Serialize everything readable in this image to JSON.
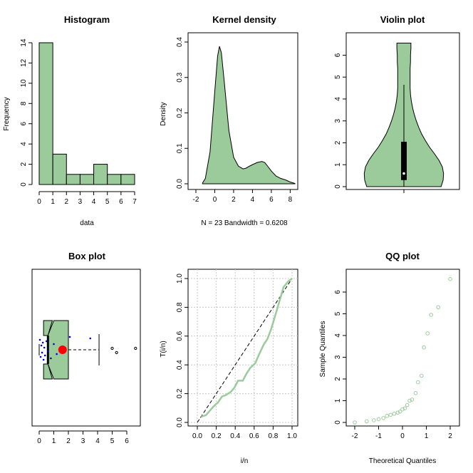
{
  "colors": {
    "fill": "#9ccb9b",
    "line": "#000000",
    "grid": "#c8c8c8",
    "qq_points": "#9ccb9b",
    "box_mean": "#ff0000",
    "jitter": "#0000cc"
  },
  "chart_data": [
    {
      "type": "bar",
      "title": "Histogram",
      "xlabel": "data",
      "ylabel": "Frequency",
      "bin_edges": [
        0,
        1,
        2,
        3,
        4,
        5,
        6,
        7
      ],
      "values": [
        14,
        3,
        1,
        1,
        2,
        1,
        1
      ],
      "xticks": [
        "0",
        "1",
        "2",
        "3",
        "4",
        "5",
        "6",
        "7"
      ],
      "yticks": [
        "0",
        "2",
        "4",
        "6",
        "8",
        "10",
        "12",
        "14"
      ],
      "xlim": [
        0,
        7
      ],
      "ylim": [
        0,
        14
      ]
    },
    {
      "type": "area",
      "title": "Kernel density",
      "xlabel": "N = 23   Bandwidth = 0.6208",
      "ylabel": "Density",
      "x": [
        -1.3,
        -1.0,
        -0.5,
        0.0,
        0.3,
        0.5,
        0.7,
        1.0,
        1.5,
        2.0,
        2.5,
        3.0,
        3.3,
        3.7,
        4.0,
        4.5,
        5.0,
        5.3,
        5.6,
        6.0,
        6.5,
        7.0,
        7.5,
        8.0,
        8.5
      ],
      "y": [
        0.002,
        0.015,
        0.09,
        0.26,
        0.36,
        0.388,
        0.37,
        0.29,
        0.15,
        0.075,
        0.05,
        0.042,
        0.044,
        0.05,
        0.054,
        0.06,
        0.063,
        0.06,
        0.05,
        0.036,
        0.022,
        0.015,
        0.011,
        0.005,
        0.001
      ],
      "xticks": [
        "-2",
        "0",
        "2",
        "4",
        "6",
        "8"
      ],
      "yticks": [
        "0.0",
        "0.1",
        "0.2",
        "0.3",
        "0.4"
      ],
      "xlim": [
        -2,
        8.5
      ],
      "ylim": [
        0,
        0.4
      ]
    },
    {
      "type": "violin",
      "title": "Violin plot",
      "density_y": [
        0,
        0.3,
        0.6,
        0.9,
        1.2,
        1.5,
        1.8,
        2.1,
        2.4,
        2.7,
        3.0,
        3.3,
        3.6,
        3.9,
        4.2,
        4.5,
        4.8,
        5.1,
        5.4,
        5.7,
        6.0,
        6.3,
        6.55
      ],
      "density_halfwidth": [
        0.9,
        0.95,
        0.96,
        0.93,
        0.85,
        0.74,
        0.62,
        0.52,
        0.43,
        0.36,
        0.3,
        0.25,
        0.21,
        0.18,
        0.16,
        0.15,
        0.15,
        0.15,
        0.15,
        0.16,
        0.16,
        0.17,
        0.17
      ],
      "whisker": [
        0.0,
        4.65
      ],
      "box": [
        0.3,
        2.05
      ],
      "median": 0.6,
      "yticks": [
        "0",
        "1",
        "2",
        "3",
        "4",
        "5",
        "6"
      ],
      "ylim": [
        0,
        6.6
      ]
    },
    {
      "type": "boxplot",
      "title": "Box plot",
      "orientation": "horizontal",
      "box": [
        0.6,
        2.0
      ],
      "notch": [
        0.3,
        0.9
      ],
      "median": 0.6,
      "mean": 1.6,
      "whisker": [
        0.0,
        4.1
      ],
      "outliers": [
        5.0,
        5.3,
        6.6
      ],
      "jitter_points": [
        0.05,
        0.1,
        0.15,
        0.2,
        0.25,
        0.3,
        0.35,
        0.4,
        0.5,
        0.6,
        0.8,
        1.0,
        1.2,
        2.1,
        3.5
      ],
      "xticks": [
        "0",
        "1",
        "2",
        "3",
        "4",
        "5",
        "6"
      ],
      "xlim": [
        -0.3,
        6.8
      ]
    },
    {
      "type": "line",
      "title": "",
      "xlabel": "i/n",
      "ylabel": "T(i/n)",
      "x": [
        0.04,
        0.09,
        0.13,
        0.17,
        0.22,
        0.26,
        0.3,
        0.35,
        0.39,
        0.43,
        0.48,
        0.52,
        0.56,
        0.61,
        0.65,
        0.7,
        0.74,
        0.78,
        0.83,
        0.87,
        0.91,
        0.96,
        1.0
      ],
      "y": [
        0.04,
        0.05,
        0.08,
        0.11,
        0.14,
        0.18,
        0.19,
        0.21,
        0.24,
        0.29,
        0.29,
        0.34,
        0.38,
        0.41,
        0.47,
        0.54,
        0.58,
        0.65,
        0.76,
        0.85,
        0.94,
        0.98,
        1.0
      ],
      "reference_line": [
        [
          0.0,
          0.0
        ],
        [
          1.0,
          1.0
        ]
      ],
      "xticks": [
        "0.0",
        "0.2",
        "0.4",
        "0.6",
        "0.8",
        "1.0"
      ],
      "yticks": [
        "0.0",
        "0.2",
        "0.4",
        "0.6",
        "0.8",
        "1.0"
      ],
      "xlim": [
        -0.04,
        1.04
      ],
      "ylim": [
        -0.04,
        1.04
      ],
      "grid": true
    },
    {
      "type": "scatter",
      "title": "QQ plot",
      "xlabel": "Theoretical Quantiles",
      "ylabel": "Sample Quantiles",
      "x": [
        -2.0,
        -1.5,
        -1.2,
        -1.0,
        -0.8,
        -0.65,
        -0.5,
        -0.35,
        -0.2,
        -0.1,
        0.0,
        0.1,
        0.2,
        0.3,
        0.4,
        0.55,
        0.65,
        0.8,
        0.9,
        1.05,
        1.2,
        1.5,
        2.0
      ],
      "y": [
        0.0,
        0.05,
        0.1,
        0.15,
        0.2,
        0.3,
        0.35,
        0.4,
        0.45,
        0.5,
        0.6,
        0.65,
        0.8,
        1.0,
        1.05,
        1.35,
        1.85,
        2.15,
        3.45,
        4.1,
        4.95,
        5.3,
        6.6
      ],
      "xticks": [
        "-2",
        "-1",
        "0",
        "1",
        "2"
      ],
      "yticks": [
        "0",
        "1",
        "2",
        "3",
        "4",
        "5",
        "6"
      ],
      "xlim": [
        -2.2,
        2.2
      ],
      "ylim": [
        -0.2,
        6.8
      ]
    }
  ]
}
